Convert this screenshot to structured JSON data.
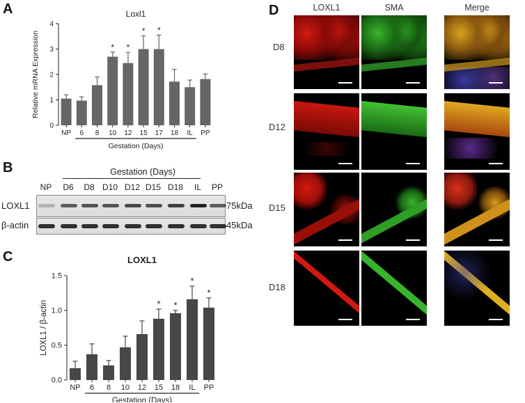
{
  "panels": {
    "A": {
      "label": "A",
      "title": "Loxl1",
      "ylabel": "Relative mRNA Expression",
      "xgroup_label": "Gestation (Days)"
    },
    "B": {
      "label": "B",
      "header": "Gestation (Days)",
      "lanes": [
        "NP",
        "D6",
        "D8",
        "D10",
        "D12",
        "D15",
        "D18",
        "IL",
        "PP"
      ],
      "rows": [
        "LOXL1",
        "β-actin"
      ],
      "sizes": [
        "75kDa",
        "45kDa"
      ]
    },
    "C": {
      "label": "C",
      "title": "LOXL1",
      "ylabel": "LOXL1 / β-actin",
      "xgroup_label": "Gestation (Days)"
    },
    "D": {
      "label": "D",
      "columns": [
        "LOXL1",
        "SMA",
        "Merge"
      ],
      "rows": [
        "D8",
        "D12",
        "D15",
        "D18"
      ]
    }
  },
  "chart_data": [
    {
      "id": "A",
      "type": "bar",
      "title": "Loxl1",
      "ylabel": "Relative mRNA Expression",
      "xlabel": "Gestation (Days)",
      "categories": [
        "NP",
        "6",
        "8",
        "10",
        "12",
        "15",
        "17",
        "18",
        "IL",
        "PP"
      ],
      "values": [
        1.05,
        0.97,
        1.58,
        2.7,
        2.45,
        3.0,
        3.0,
        1.72,
        1.5,
        1.82
      ],
      "errors": [
        0.15,
        0.15,
        0.32,
        0.18,
        0.42,
        0.52,
        0.55,
        0.48,
        0.28,
        0.2
      ],
      "significant": [
        false,
        false,
        false,
        true,
        true,
        true,
        true,
        false,
        false,
        false
      ],
      "significance_marker": "*",
      "ylim": [
        0,
        4
      ],
      "yticks": [
        0,
        1,
        2,
        3,
        4
      ],
      "gestation_range": [
        "6",
        "IL"
      ],
      "color": "#666666"
    },
    {
      "id": "C",
      "type": "bar",
      "title": "LOXL1",
      "ylabel": "LOXL1 / β-actin",
      "xlabel": "Gestation (Days)",
      "categories": [
        "NP",
        "6",
        "8",
        "10",
        "12",
        "15",
        "18",
        "IL",
        "PP"
      ],
      "values": [
        0.17,
        0.37,
        0.21,
        0.47,
        0.66,
        0.88,
        0.96,
        1.16,
        1.04
      ],
      "errors": [
        0.1,
        0.15,
        0.07,
        0.16,
        0.19,
        0.14,
        0.04,
        0.19,
        0.14
      ],
      "significant": [
        false,
        false,
        false,
        false,
        false,
        true,
        true,
        true,
        true
      ],
      "significance_marker": "*",
      "ylim": [
        0,
        1.5
      ],
      "yticks": [
        0.0,
        0.5,
        1.0,
        1.5
      ],
      "gestation_range": [
        "6",
        "IL"
      ],
      "color": "#474747"
    }
  ]
}
